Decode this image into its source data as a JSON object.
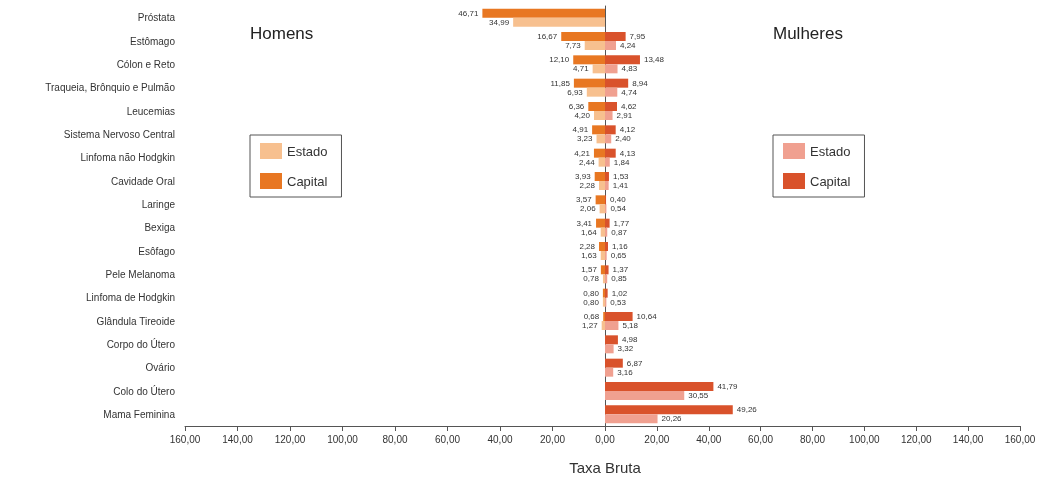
{
  "chart_data": [
    {
      "type": "bar",
      "orientation": "horizontal",
      "annotations": [
        "Homens"
      ],
      "legend": "left",
      "grid": false,
      "categories": [
        "Próstata",
        "Estômago",
        "Cólon e Reto",
        "Traqueia, Brônquio e Pulmão",
        "Leucemias",
        "Sistema Nervoso Central",
        "Linfoma não Hodgkin",
        "Cavidade Oral",
        "Laringe",
        "Bexiga",
        "Esôfago",
        "Pele Melanoma",
        "Linfoma de Hodgkin",
        "Glândula Tireoide",
        "Corpo do Útero",
        "Ovário",
        "Colo do Útero",
        "Mama Feminina"
      ],
      "xlim": [
        160,
        0
      ],
      "xticks": [
        {
          "value": 160,
          "label": "160,00"
        },
        {
          "value": 140,
          "label": "140,00"
        },
        {
          "value": 120,
          "label": "120,00"
        },
        {
          "value": 100,
          "label": "100,00"
        },
        {
          "value": 80,
          "label": "80,00"
        },
        {
          "value": 60,
          "label": "60,00"
        },
        {
          "value": 40,
          "label": "40,00"
        },
        {
          "value": 20,
          "label": "20,00"
        },
        {
          "value": 0,
          "label": "0,00"
        }
      ],
      "series": [
        {
          "name": "Capital",
          "color": "#e87722",
          "values": [
            46.71,
            16.67,
            12.1,
            11.85,
            6.36,
            4.91,
            4.21,
            3.93,
            3.57,
            3.41,
            2.28,
            1.57,
            0.8,
            0.68,
            null,
            null,
            null,
            null
          ],
          "value_labels": [
            "46,71",
            "16,67",
            "12,10",
            "11,85",
            "6,36",
            "4,91",
            "4,21",
            "3,93",
            "3,57",
            "3,41",
            "2,28",
            "1,57",
            "0,80",
            "0,68",
            null,
            null,
            null,
            null
          ]
        },
        {
          "name": "Estado",
          "color": "#f7c08f",
          "values": [
            34.99,
            7.73,
            4.71,
            6.93,
            4.2,
            3.23,
            2.44,
            2.28,
            2.06,
            1.64,
            1.63,
            0.78,
            0.8,
            1.27,
            null,
            null,
            null,
            null
          ],
          "value_labels": [
            "34,99",
            "7,73",
            "4,71",
            "6,93",
            "4,20",
            "3,23",
            "2,44",
            "2,28",
            "2,06",
            "1,64",
            "1,63",
            "0,78",
            "0,80",
            "1,27",
            null,
            null,
            null,
            null
          ]
        }
      ]
    },
    {
      "type": "bar",
      "orientation": "horizontal",
      "annotations": [
        "Mulheres"
      ],
      "xlabel": "Taxa Bruta",
      "legend": "right",
      "grid": false,
      "tick_labels": "x",
      "xlim": [
        0,
        160
      ],
      "xticks": [
        {
          "value": 0,
          "label": null
        },
        {
          "value": 20,
          "label": "20,00"
        },
        {
          "value": 40,
          "label": "40,00"
        },
        {
          "value": 60,
          "label": "60,00"
        },
        {
          "value": 80,
          "label": "80,00"
        },
        {
          "value": 100,
          "label": "100,00"
        },
        {
          "value": 120,
          "label": "120,00"
        },
        {
          "value": 140,
          "label": "140,00"
        },
        {
          "value": 160,
          "label": "160,00"
        }
      ],
      "series": [
        {
          "name": "Capital",
          "color": "#d9522b",
          "values": [
            null,
            7.95,
            13.48,
            8.94,
            4.62,
            4.12,
            4.13,
            1.53,
            0.4,
            1.77,
            1.16,
            1.37,
            1.02,
            10.64,
            4.98,
            6.87,
            41.79,
            49.26
          ],
          "value_labels": [
            null,
            "7,95",
            "13,48",
            "8,94",
            "4,62",
            "4,12",
            "4,13",
            "1,53",
            "0,40",
            "1,77",
            "1,16",
            "1,37",
            "1,02",
            "10,64",
            "4,98",
            "6,87",
            "41,79",
            "49,26"
          ]
        },
        {
          "name": "Estado",
          "color": "#f0a090",
          "values": [
            null,
            4.24,
            4.83,
            4.74,
            2.91,
            2.4,
            1.84,
            1.41,
            0.54,
            0.87,
            0.65,
            0.85,
            0.53,
            5.18,
            3.32,
            3.16,
            30.55,
            20.26
          ],
          "value_labels": [
            null,
            "4,24",
            "4,83",
            "4,74",
            "2,91",
            "2,40",
            "1,84",
            "1,41",
            "0,54",
            "0,87",
            "0,65",
            "0,85",
            "0,53",
            "5,18",
            "3,32",
            "3,16",
            "30,55",
            "20,26"
          ]
        }
      ]
    }
  ]
}
